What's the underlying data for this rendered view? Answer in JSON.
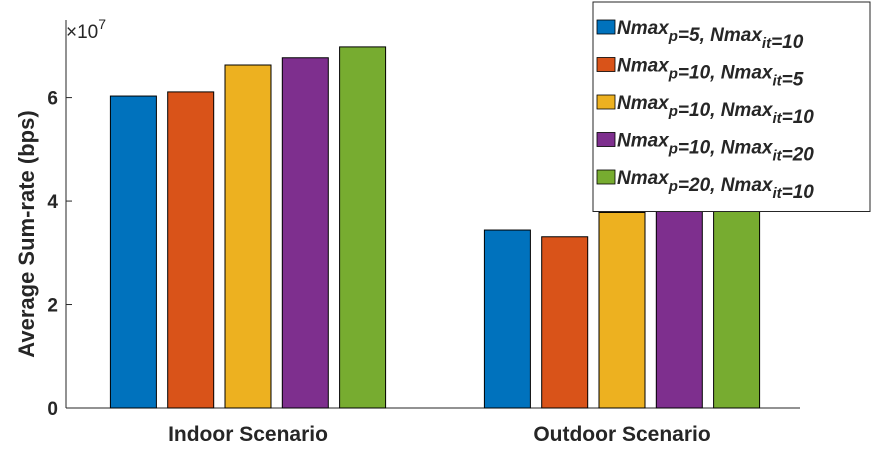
{
  "chart_data": {
    "type": "bar",
    "title": "",
    "xlabel": "",
    "ylabel": "Average Sum-rate (bps)",
    "exponent_base": "×10",
    "exponent_power": "7",
    "ylim": [
      0,
      7.5
    ],
    "yticks": [
      0,
      2,
      4,
      6
    ],
    "ytick_labels": [
      "0",
      "2",
      "4",
      "6"
    ],
    "categories": [
      "Indoor Scenario",
      "Outdoor Scenario"
    ],
    "grid": false,
    "legend_position": "top-right",
    "series": [
      {
        "name_parts": [
          [
            "Nmax",
            ""
          ],
          [
            "p",
            "sub"
          ],
          [
            "=5, Nmax",
            ""
          ],
          [
            "it",
            "sub"
          ],
          [
            "=10",
            ""
          ]
        ],
        "color": "#0072BD",
        "values": [
          6.03,
          3.44
        ]
      },
      {
        "name_parts": [
          [
            "Nmax",
            ""
          ],
          [
            "p",
            "sub"
          ],
          [
            "=10, Nmax",
            ""
          ],
          [
            "it",
            "sub"
          ],
          [
            "=5",
            ""
          ]
        ],
        "color": "#D95319",
        "values": [
          6.11,
          3.31
        ]
      },
      {
        "name_parts": [
          [
            "Nmax",
            ""
          ],
          [
            "p",
            "sub"
          ],
          [
            "=10, Nmax",
            ""
          ],
          [
            "it",
            "sub"
          ],
          [
            "=10",
            ""
          ]
        ],
        "color": "#EDB120",
        "values": [
          6.63,
          3.78
        ]
      },
      {
        "name_parts": [
          [
            "Nmax",
            ""
          ],
          [
            "p",
            "sub"
          ],
          [
            "=10, Nmax",
            ""
          ],
          [
            "it",
            "sub"
          ],
          [
            "=20",
            ""
          ]
        ],
        "color": "#7E2F8E",
        "values": [
          6.77,
          3.91
        ]
      },
      {
        "name_parts": [
          [
            "Nmax",
            ""
          ],
          [
            "p",
            "sub"
          ],
          [
            "=20, Nmax",
            ""
          ],
          [
            "it",
            "sub"
          ],
          [
            "=10",
            ""
          ]
        ],
        "color": "#77AC30",
        "values": [
          6.98,
          3.99
        ]
      }
    ]
  }
}
